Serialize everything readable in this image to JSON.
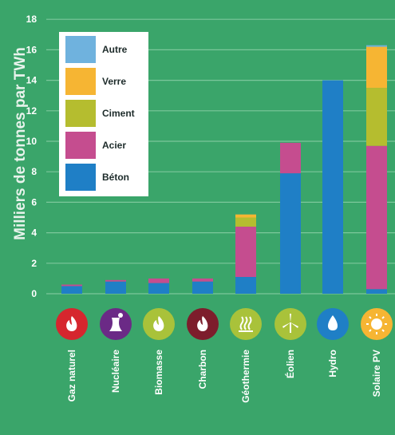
{
  "chart_data": {
    "type": "bar",
    "stacked": true,
    "ylabel": "Milliers de tonnes par TWh",
    "ylim": [
      0,
      18
    ],
    "yticks": [
      0,
      2,
      4,
      6,
      8,
      10,
      12,
      14,
      16,
      18
    ],
    "grid": true,
    "legend_position": "top-left",
    "categories": [
      "Gaz naturel",
      "Nucléaire",
      "Biomasse",
      "Charbon",
      "Géothermie",
      "Éolien",
      "Hydro",
      "Solaire PV"
    ],
    "category_icons": [
      "flame-icon",
      "cooling-tower-icon",
      "flame-icon",
      "flame-icon",
      "geothermal-icon",
      "wind-turbine-icon",
      "water-drop-icon",
      "sun-icon"
    ],
    "category_icon_colors": [
      "#d6262e",
      "#6b2a86",
      "#a9c23a",
      "#7d1d2c",
      "#a9c23a",
      "#a9c23a",
      "#1f7fc6",
      "#f6b533"
    ],
    "series": [
      {
        "name": "Béton",
        "color": "#1f7fc6",
        "values": [
          0.5,
          0.8,
          0.7,
          0.8,
          1.1,
          7.9,
          14.0,
          0.3
        ]
      },
      {
        "name": "Acier",
        "color": "#c54d8f",
        "values": [
          0.1,
          0.1,
          0.3,
          0.2,
          3.3,
          2.0,
          0.0,
          9.4
        ]
      },
      {
        "name": "Ciment",
        "color": "#b5bd2f",
        "values": [
          0,
          0,
          0,
          0,
          0.6,
          0,
          0,
          3.8
        ]
      },
      {
        "name": "Verre",
        "color": "#f6b533",
        "values": [
          0,
          0,
          0,
          0,
          0.2,
          0,
          0,
          2.7
        ]
      },
      {
        "name": "Autre",
        "color": "#6fb2de",
        "values": [
          0,
          0,
          0,
          0,
          0,
          0,
          0,
          0.1
        ]
      }
    ],
    "legend_order": [
      "Autre",
      "Verre",
      "Ciment",
      "Acier",
      "Béton"
    ]
  }
}
